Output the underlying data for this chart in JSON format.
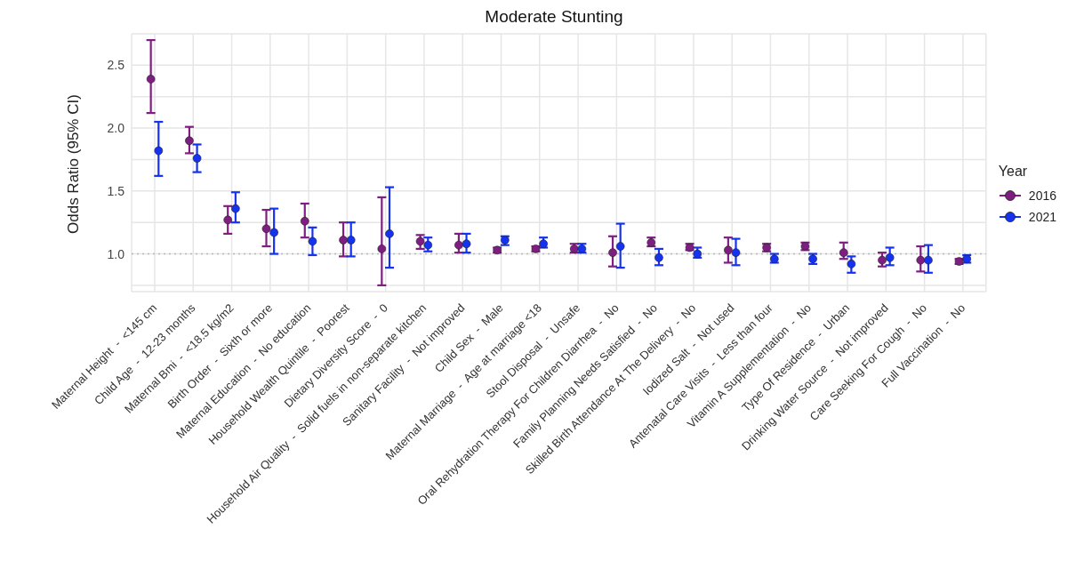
{
  "chart_data": {
    "type": "scatter",
    "title": "Moderate Stunting",
    "ylabel": "Odds Ratio (95% CI)",
    "legend_title": "Year",
    "legend": "right",
    "grid": true,
    "marker": "circle",
    "categories": [
      "Maternal Height  -  <145 cm",
      "Child Age  -  12-23 months",
      "Maternal Bmi  -  <18.5 kg/m2",
      "Birth Order  -  Sixth or more",
      "Maternal Education  -  No education",
      "Household Wealth Quintile  -  Poorest",
      "Dietary Diversity Score  -  0",
      "Household Air Quality  -  Solid fuels in non-separate kitchen",
      "Sanitary Facility  -  Not improved",
      "Child Sex  -  Male",
      "Maternal Marriage  -  Age at marriage <18",
      "Stool Disposal  -  Unsafe",
      "Oral Rehydration Therapy For Children Diarrhea  -  No",
      "Family Planning Needs Satisfied  -  No",
      "Skilled Birth Attendance At The Delivery  -  No",
      "Iodized Salt  -  Not used",
      "Antenatal Care Visits  -  Less than four",
      "Vitamin A Supplementation  -  No",
      "Type Of Residence  -  Urban",
      "Drinking Water Source  -  Not improved",
      "Care Seeking For Cough  -  No",
      "Full Vaccination  -  No"
    ],
    "ylim": [
      0.7,
      2.75
    ],
    "yticks": [
      {
        "value": 0.75,
        "label": null
      },
      {
        "value": 1,
        "label": "1.0"
      },
      {
        "value": 1.25,
        "label": null
      },
      {
        "value": 1.5,
        "label": "1.5"
      },
      {
        "value": 1.75,
        "label": null
      },
      {
        "value": 2,
        "label": "2.0"
      },
      {
        "value": 2.25,
        "label": null
      },
      {
        "value": 2.5,
        "label": "2.5"
      }
    ],
    "ref_lines": [
      {
        "axis": "y",
        "value": 1,
        "color": "#b8b8b8",
        "line_style": "dotted"
      }
    ],
    "series": [
      {
        "name": "2016",
        "color": "#7e1e80",
        "values": [
          2.39,
          1.9,
          1.27,
          1.2,
          1.26,
          1.11,
          1.04,
          1.1,
          1.07,
          1.03,
          1.04,
          1.04,
          1.01,
          1.09,
          1.05,
          1.03,
          1.05,
          1.06,
          1.01,
          0.95,
          0.95,
          0.94
        ],
        "errors": [
          [
            2.12,
            2.7
          ],
          [
            1.8,
            2.01
          ],
          [
            1.16,
            1.38
          ],
          [
            1.06,
            1.35
          ],
          [
            1.13,
            1.4
          ],
          [
            0.98,
            1.25
          ],
          [
            0.75,
            1.45
          ],
          [
            1.04,
            1.15
          ],
          [
            1.01,
            1.16
          ],
          [
            1.01,
            1.05
          ],
          [
            1.02,
            1.06
          ],
          [
            1.01,
            1.08
          ],
          [
            0.9,
            1.14
          ],
          [
            1.06,
            1.13
          ],
          [
            1.03,
            1.08
          ],
          [
            0.93,
            1.13
          ],
          [
            1.02,
            1.08
          ],
          [
            1.03,
            1.09
          ],
          [
            0.96,
            1.09
          ],
          [
            0.9,
            1.01
          ],
          [
            0.86,
            1.06
          ],
          [
            0.92,
            0.96
          ]
        ]
      },
      {
        "name": "2021",
        "color": "#1432f0",
        "values": [
          1.82,
          1.76,
          1.36,
          1.17,
          1.1,
          1.11,
          1.16,
          1.07,
          1.08,
          1.11,
          1.08,
          1.04,
          1.06,
          0.97,
          1,
          1.01,
          0.96,
          0.96,
          0.92,
          0.97,
          0.95,
          0.96
        ],
        "errors": [
          [
            1.62,
            2.05
          ],
          [
            1.65,
            1.87
          ],
          [
            1.25,
            1.49
          ],
          [
            1,
            1.36
          ],
          [
            0.99,
            1.21
          ],
          [
            0.98,
            1.25
          ],
          [
            0.89,
            1.53
          ],
          [
            1.02,
            1.13
          ],
          [
            1.01,
            1.16
          ],
          [
            1.07,
            1.14
          ],
          [
            1.05,
            1.13
          ],
          [
            1.01,
            1.08
          ],
          [
            0.89,
            1.24
          ],
          [
            0.91,
            1.04
          ],
          [
            0.97,
            1.05
          ],
          [
            0.91,
            1.12
          ],
          [
            0.93,
            1
          ],
          [
            0.92,
            1
          ],
          [
            0.85,
            0.98
          ],
          [
            0.91,
            1.05
          ],
          [
            0.85,
            1.07
          ],
          [
            0.93,
            0.99
          ]
        ]
      }
    ]
  }
}
